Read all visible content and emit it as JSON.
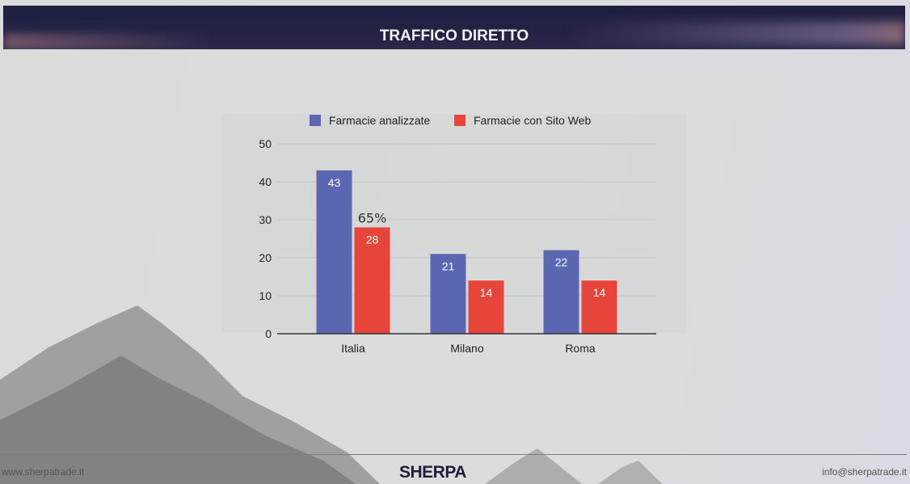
{
  "header": {
    "title": "TRAFFICO DIRETTO"
  },
  "footer": {
    "website": "www.sherpatrade.it",
    "email": "info@sherpatrade.it",
    "logo": "SHERPA"
  },
  "colors": {
    "series1": "#5b67b2",
    "series2": "#e8453a",
    "header_bg": "#212043"
  },
  "chart_data": {
    "type": "bar",
    "title": "",
    "xlabel": "",
    "ylabel": "",
    "categories": [
      "Italia",
      "Milano",
      "Roma"
    ],
    "series": [
      {
        "name": "Farmacie analizzate",
        "values": [
          43,
          21,
          22
        ],
        "color": "#5b67b2"
      },
      {
        "name": "Farmacie con Sito Web",
        "values": [
          28,
          14,
          14
        ],
        "color": "#e8453a"
      }
    ],
    "ylim": [
      0,
      50
    ],
    "yticks": [
      0,
      10,
      20,
      30,
      40,
      50
    ],
    "grid": true,
    "legend": "top",
    "annotations": [
      {
        "text": "65%",
        "category": "Italia",
        "series": "Farmacie con Sito Web"
      }
    ]
  }
}
